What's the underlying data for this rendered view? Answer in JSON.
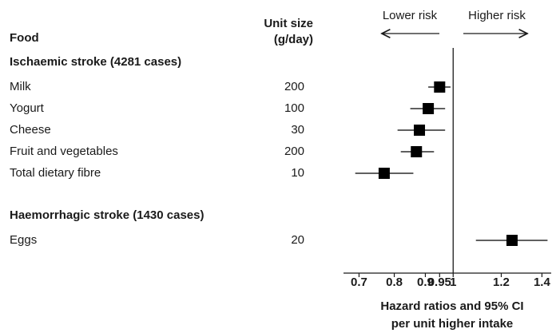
{
  "chart_data": {
    "type": "forest",
    "column_headers": {
      "food": "Food",
      "unit": [
        "Unit size",
        "(g/day)"
      ]
    },
    "annotations": {
      "left": "Lower risk",
      "right": "Higher risk"
    },
    "xlabel": [
      "Hazard ratios and 95% CI",
      "per unit higher intake"
    ],
    "log_x": true,
    "reference": 1,
    "xlim": [
      0.66,
      1.45
    ],
    "xticks": [
      0.7,
      0.8,
      0.9,
      0.95,
      1,
      1.2,
      1.4
    ],
    "color": "#000000",
    "groups": [
      {
        "title": "Ischaemic stroke (4281 cases)",
        "categories": [
          "Milk",
          "Yogurt",
          "Cheese",
          "Fruit and vegetables",
          "Total dietary fibre"
        ],
        "units": [
          200,
          100,
          30,
          200,
          10
        ],
        "values": [
          0.95,
          0.91,
          0.88,
          0.87,
          0.77
        ],
        "lower": [
          0.91,
          0.85,
          0.81,
          0.82,
          0.69
        ],
        "upper": [
          0.99,
          0.97,
          0.97,
          0.93,
          0.86
        ]
      },
      {
        "title": "Haemorrhagic stroke (1430 cases)",
        "categories": [
          "Eggs"
        ],
        "units": [
          20
        ],
        "values": [
          1.25
        ],
        "lower": [
          1.09
        ],
        "upper": [
          1.43
        ]
      }
    ]
  }
}
